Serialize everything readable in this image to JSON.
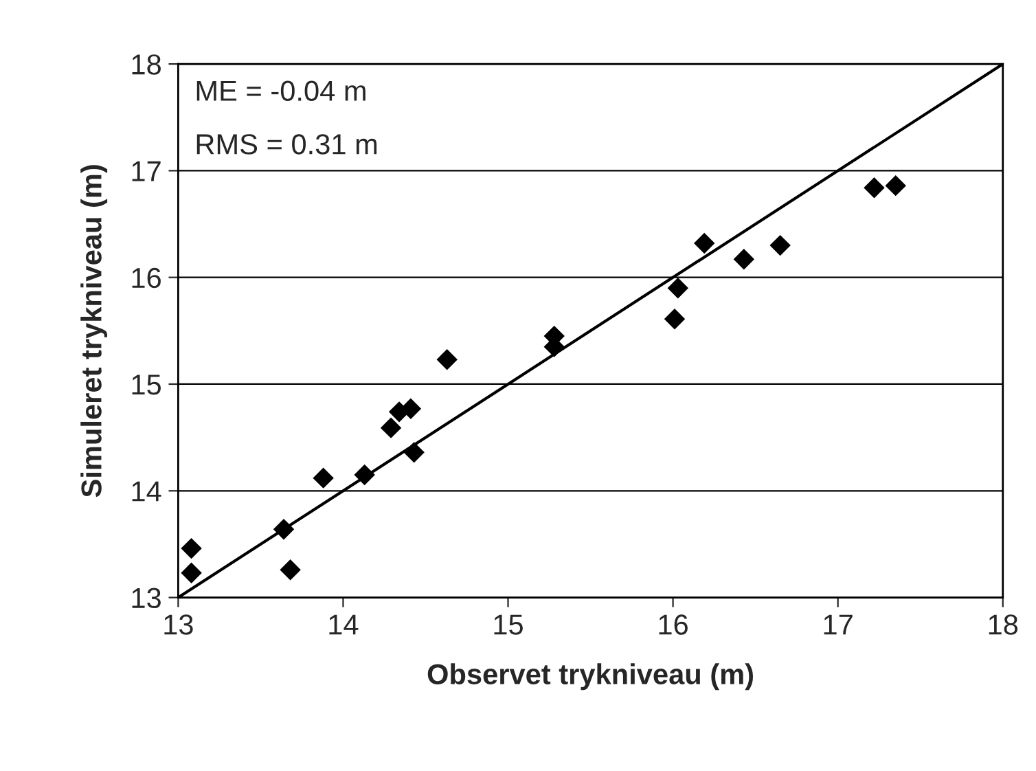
{
  "chart_data": {
    "type": "scatter",
    "xlabel": "Observet trykniveau (m)",
    "ylabel": "Simuleret trykniveau (m)",
    "annotations": [
      "ME = -0.04 m",
      "RMS = 0.31 m"
    ],
    "series": [
      {
        "color": "#000000",
        "marker": "diamond",
        "x": [
          13.08,
          13.08,
          13.64,
          13.68,
          13.88,
          14.13,
          14.29,
          14.34,
          14.41,
          14.43,
          14.63,
          15.28,
          15.28,
          16.01,
          16.03,
          16.19,
          16.43,
          16.65,
          17.22,
          17.35
        ],
        "values": [
          13.46,
          13.23,
          13.64,
          13.26,
          14.12,
          14.15,
          14.59,
          14.74,
          14.77,
          14.36,
          15.23,
          15.45,
          15.35,
          15.61,
          15.9,
          16.32,
          16.17,
          16.3,
          16.84,
          16.86
        ]
      },
      {
        "type": "line",
        "color": "#000000",
        "marker": "none",
        "line_style": "solid",
        "x": [
          13,
          18
        ],
        "values": [
          13,
          18
        ]
      }
    ],
    "xlim": [
      13,
      18
    ],
    "ylim": [
      13,
      18
    ],
    "xticks": [
      13,
      14,
      15,
      16,
      17,
      18
    ],
    "yticks": [
      13,
      14,
      15,
      16,
      17,
      18
    ],
    "grid": "y",
    "legend": false
  }
}
